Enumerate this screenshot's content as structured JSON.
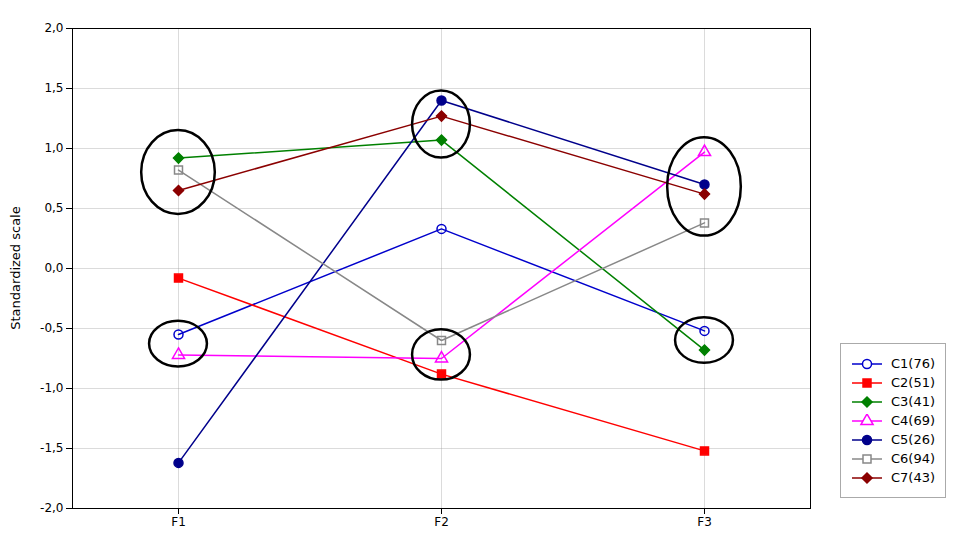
{
  "chart_data": {
    "type": "line",
    "categories": [
      "F1",
      "F2",
      "F3"
    ],
    "series": [
      {
        "name": "C1(76)",
        "color": "#0000CC",
        "marker": "circle-open",
        "values": [
          -0.55,
          0.33,
          -0.52
        ]
      },
      {
        "name": "C2(51)",
        "color": "#FF0000",
        "marker": "square",
        "values": [
          -0.08,
          -0.88,
          -1.52
        ]
      },
      {
        "name": "C3(41)",
        "color": "#008000",
        "marker": "diamond",
        "values": [
          0.92,
          1.07,
          -0.68
        ]
      },
      {
        "name": "C4(69)",
        "color": "#FF00FF",
        "marker": "triangle-open",
        "values": [
          -0.72,
          -0.75,
          0.97
        ]
      },
      {
        "name": "C5(26)",
        "color": "#00008B",
        "marker": "circle",
        "values": [
          -1.62,
          1.4,
          0.7
        ]
      },
      {
        "name": "C6(94)",
        "color": "#888888",
        "marker": "square-open",
        "values": [
          0.82,
          -0.6,
          0.38
        ]
      },
      {
        "name": "C7(43)",
        "color": "#8B0000",
        "marker": "diamond",
        "values": [
          0.65,
          1.27,
          0.62
        ]
      }
    ],
    "ylabel": "Standardized scale",
    "ylim": [
      -2.0,
      2.0
    ],
    "yticks": [
      {
        "value": -2.0,
        "label": "-2,0"
      },
      {
        "value": -1.5,
        "label": "-1,5"
      },
      {
        "value": -1.0,
        "label": "-1,0"
      },
      {
        "value": -0.5,
        "label": "-0,5"
      },
      {
        "value": 0.0,
        "label": "0,0"
      },
      {
        "value": 0.5,
        "label": "0,5"
      },
      {
        "value": 1.0,
        "label": "1,0"
      },
      {
        "value": 1.5,
        "label": "1,5"
      },
      {
        "value": 2.0,
        "label": "2,0"
      }
    ],
    "grid": true,
    "legend": "right",
    "ellipses": [
      {
        "x": "F1",
        "y": 0.8,
        "width": 0.28,
        "height": 0.7
      },
      {
        "x": "F1",
        "y": -0.63,
        "width": 0.22,
        "height": 0.38
      },
      {
        "x": "F2",
        "y": 1.2,
        "width": 0.22,
        "height": 0.56
      },
      {
        "x": "F2",
        "y": -0.72,
        "width": 0.22,
        "height": 0.42
      },
      {
        "x": "F3",
        "y": 0.68,
        "width": 0.28,
        "height": 0.82
      },
      {
        "x": "F3",
        "y": -0.6,
        "width": 0.22,
        "height": 0.38
      }
    ]
  }
}
